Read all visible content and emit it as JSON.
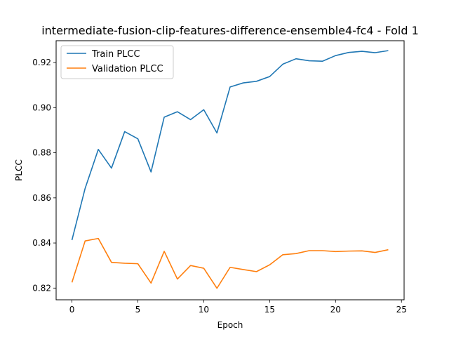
{
  "chart_data": {
    "type": "line",
    "title": "intermediate-fusion-clip-features-difference-ensemble4-fc4 - Fold 1",
    "xlabel": "Epoch",
    "ylabel": "PLCC",
    "xlim": [
      -1.2,
      25.2
    ],
    "ylim": [
      0.8148,
      0.9297
    ],
    "xticks": [
      0,
      5,
      10,
      15,
      20,
      25
    ],
    "yticks": [
      0.82,
      0.84,
      0.86,
      0.88,
      0.9,
      0.92
    ],
    "ytick_labels": [
      "0.82",
      "0.84",
      "0.86",
      "0.88",
      "0.90",
      "0.92"
    ],
    "grid": false,
    "legend_position": "top-left",
    "x": [
      0,
      1,
      2,
      3,
      4,
      5,
      6,
      7,
      8,
      9,
      10,
      11,
      12,
      13,
      14,
      15,
      16,
      17,
      18,
      19,
      20,
      21,
      22,
      23,
      24
    ],
    "series": [
      {
        "name": "Train PLCC",
        "color": "#1f77b4",
        "values": [
          0.8413,
          0.8642,
          0.8815,
          0.8732,
          0.8894,
          0.8862,
          0.8715,
          0.8958,
          0.8982,
          0.8947,
          0.8991,
          0.8888,
          0.9092,
          0.911,
          0.9117,
          0.9138,
          0.9193,
          0.9217,
          0.9208,
          0.9206,
          0.9231,
          0.9245,
          0.925,
          0.9244,
          0.9253
        ]
      },
      {
        "name": "Validation PLCC",
        "color": "#ff7f0e",
        "values": [
          0.8225,
          0.8409,
          0.842,
          0.8314,
          0.831,
          0.8308,
          0.8222,
          0.8363,
          0.824,
          0.83,
          0.8288,
          0.8199,
          0.8292,
          0.8282,
          0.8273,
          0.8303,
          0.8348,
          0.8353,
          0.8366,
          0.8366,
          0.8362,
          0.8364,
          0.8365,
          0.8358,
          0.837
        ]
      }
    ]
  }
}
